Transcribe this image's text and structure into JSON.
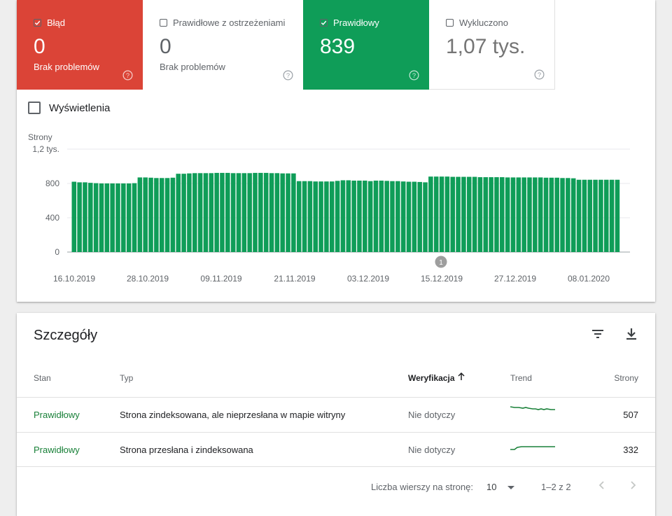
{
  "tiles": {
    "error": {
      "label": "Błąd",
      "value": "0",
      "sub": "Brak problemów",
      "checked": true,
      "color": "#db4437"
    },
    "warnings": {
      "label": "Prawidłowe z ostrzeżeniami",
      "value": "0",
      "sub": "Brak problemów",
      "checked": false
    },
    "valid": {
      "label": "Prawidłowy",
      "value": "839",
      "checked": true,
      "color": "#0f9d58"
    },
    "excluded": {
      "label": "Wykluczono",
      "value": "1,07 tys.",
      "checked": false
    }
  },
  "impressions_label": "Wyświetlenia",
  "chart_data": {
    "type": "bar",
    "ylabel": "Strony",
    "ytick_labels": [
      "0",
      "400",
      "800",
      "1,2 tys."
    ],
    "yticks": [
      0,
      400,
      800,
      1200
    ],
    "ylim": [
      0,
      1200
    ],
    "xtick_labels": [
      "16.10.2019",
      "28.10.2019",
      "09.11.2019",
      "21.11.2019",
      "03.12.2019",
      "15.12.2019",
      "27.12.2019",
      "08.01.2020"
    ],
    "annotation": "1",
    "annotation_index": 75,
    "color": "#0f9d58",
    "values": [
      820,
      813,
      813,
      807,
      803,
      800,
      800,
      800,
      800,
      800,
      800,
      803,
      870,
      870,
      867,
      863,
      863,
      863,
      867,
      913,
      913,
      917,
      920,
      920,
      920,
      920,
      923,
      923,
      923,
      920,
      920,
      920,
      920,
      923,
      923,
      923,
      920,
      920,
      917,
      917,
      917,
      827,
      827,
      827,
      823,
      823,
      823,
      823,
      830,
      837,
      837,
      833,
      833,
      833,
      827,
      833,
      833,
      830,
      827,
      827,
      823,
      820,
      820,
      817,
      813,
      880,
      880,
      880,
      880,
      877,
      877,
      877,
      877,
      877,
      873,
      873,
      873,
      873,
      873,
      870,
      870,
      870,
      870,
      870,
      870,
      870,
      867,
      867,
      867,
      863,
      863,
      860,
      843,
      843,
      843,
      843,
      843,
      843,
      843,
      843
    ]
  },
  "details": {
    "title": "Szczegóły",
    "filter_icon": "filter-icon",
    "download_icon": "download-icon",
    "columns": {
      "stan": "Stan",
      "typ": "Typ",
      "weryfikacja": "Weryfikacja",
      "trend": "Trend",
      "strony": "Strony"
    },
    "rows": [
      {
        "stan": "Prawidłowy",
        "typ": "Strona zindeksowana, ale nieprzesłana w mapie witryny",
        "weryfikacja": "Nie dotyczy",
        "strony": "507"
      },
      {
        "stan": "Prawidłowy",
        "typ": "Strona przesłana i zindeksowana",
        "weryfikacja": "Nie dotyczy",
        "strony": "332"
      }
    ],
    "footer": {
      "rows_per_page_label": "Liczba wierszy na stronę:",
      "rows_per_page": "10",
      "range": "1–2 z 2"
    }
  }
}
